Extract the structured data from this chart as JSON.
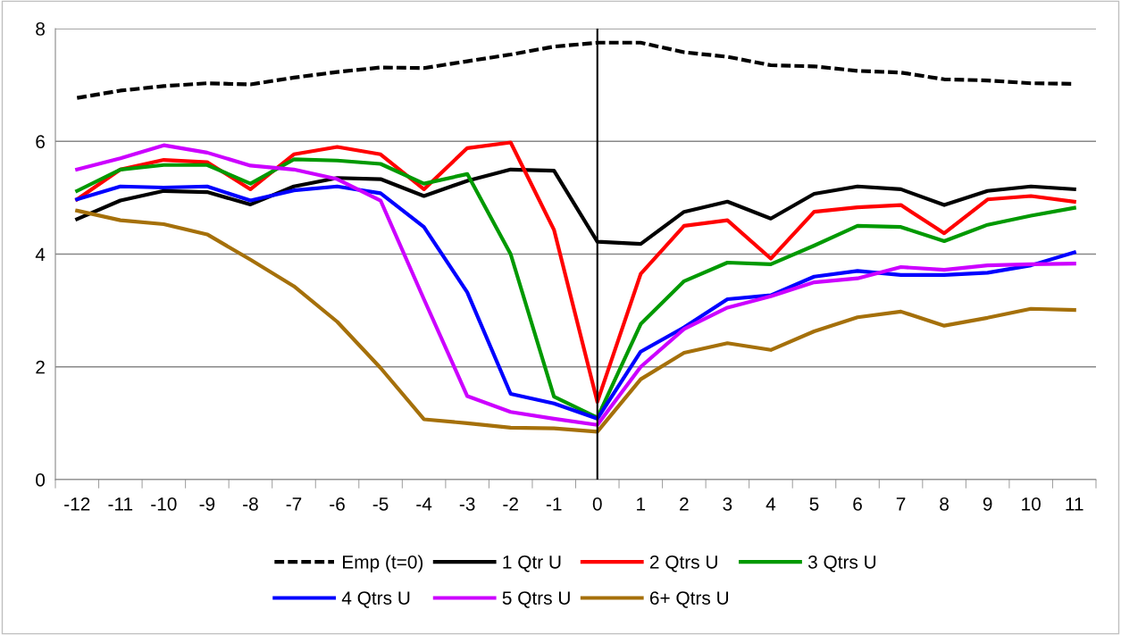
{
  "chart_data": {
    "type": "line",
    "categories": [
      "-12",
      "-11",
      "-10",
      "-9",
      "-8",
      "-7",
      "-6",
      "-5",
      "-4",
      "-3",
      "-2",
      "-1",
      "0",
      "1",
      "2",
      "3",
      "4",
      "5",
      "6",
      "7",
      "8",
      "9",
      "10",
      "11"
    ],
    "ylim": [
      0,
      8
    ],
    "yticks": [
      0,
      2,
      4,
      6,
      8
    ],
    "grid": "y",
    "legend": "bottom",
    "marker": "none",
    "ref_lines": [
      {
        "axis": "x",
        "value": "0",
        "color": "#000000"
      }
    ],
    "series": [
      {
        "name": "Emp (t=0)",
        "color": "#000000",
        "line_style": "dashed",
        "values": [
          6.77,
          6.9,
          6.98,
          7.03,
          7.01,
          7.13,
          7.23,
          7.31,
          7.3,
          7.42,
          7.54,
          7.68,
          7.75,
          7.75,
          7.58,
          7.5,
          7.35,
          7.33,
          7.25,
          7.22,
          7.1,
          7.08,
          7.03,
          7.02
        ]
      },
      {
        "name": "1 Qtr U",
        "color": "#000000",
        "line_style": "solid",
        "values": [
          4.62,
          4.95,
          5.12,
          5.1,
          4.88,
          5.2,
          5.35,
          5.33,
          5.03,
          5.3,
          5.5,
          5.48,
          4.22,
          4.18,
          4.75,
          4.93,
          4.63,
          5.07,
          5.2,
          5.15,
          4.87,
          5.12,
          5.2,
          5.15
        ]
      },
      {
        "name": "2 Qtrs U",
        "color": "#ff0000",
        "line_style": "solid",
        "values": [
          4.97,
          5.5,
          5.67,
          5.63,
          5.15,
          5.77,
          5.9,
          5.77,
          5.15,
          5.88,
          5.98,
          4.43,
          1.38,
          3.65,
          4.5,
          4.6,
          3.92,
          4.75,
          4.83,
          4.87,
          4.37,
          4.97,
          5.03,
          4.93
        ]
      },
      {
        "name": "3 Qtrs U",
        "color": "#009900",
        "line_style": "solid",
        "values": [
          5.12,
          5.5,
          5.58,
          5.58,
          5.25,
          5.68,
          5.66,
          5.6,
          5.25,
          5.42,
          4.0,
          1.47,
          1.1,
          2.76,
          3.52,
          3.85,
          3.82,
          4.15,
          4.5,
          4.48,
          4.23,
          4.52,
          4.68,
          4.82
        ]
      },
      {
        "name": "4 Qtrs U",
        "color": "#0000ff",
        "line_style": "solid",
        "values": [
          4.97,
          5.2,
          5.18,
          5.2,
          4.95,
          5.13,
          5.2,
          5.08,
          4.48,
          3.32,
          1.52,
          1.35,
          1.08,
          2.27,
          2.7,
          3.2,
          3.27,
          3.6,
          3.7,
          3.63,
          3.63,
          3.67,
          3.8,
          4.03
        ]
      },
      {
        "name": "5 Qtrs U",
        "color": "#cc00ff",
        "line_style": "solid",
        "values": [
          5.5,
          5.7,
          5.93,
          5.8,
          5.57,
          5.5,
          5.33,
          4.95,
          3.2,
          1.48,
          1.2,
          1.08,
          0.97,
          2.0,
          2.67,
          3.05,
          3.25,
          3.5,
          3.57,
          3.77,
          3.72,
          3.8,
          3.82,
          3.83
        ]
      },
      {
        "name": "6+ Qtrs U",
        "color": "#a5700a",
        "line_style": "solid",
        "values": [
          4.77,
          4.6,
          4.53,
          4.35,
          3.9,
          3.43,
          2.8,
          1.98,
          1.07,
          1.0,
          0.92,
          0.91,
          0.85,
          1.78,
          2.25,
          2.42,
          2.3,
          2.63,
          2.88,
          2.98,
          2.73,
          2.87,
          3.03,
          3.01
        ]
      }
    ]
  }
}
